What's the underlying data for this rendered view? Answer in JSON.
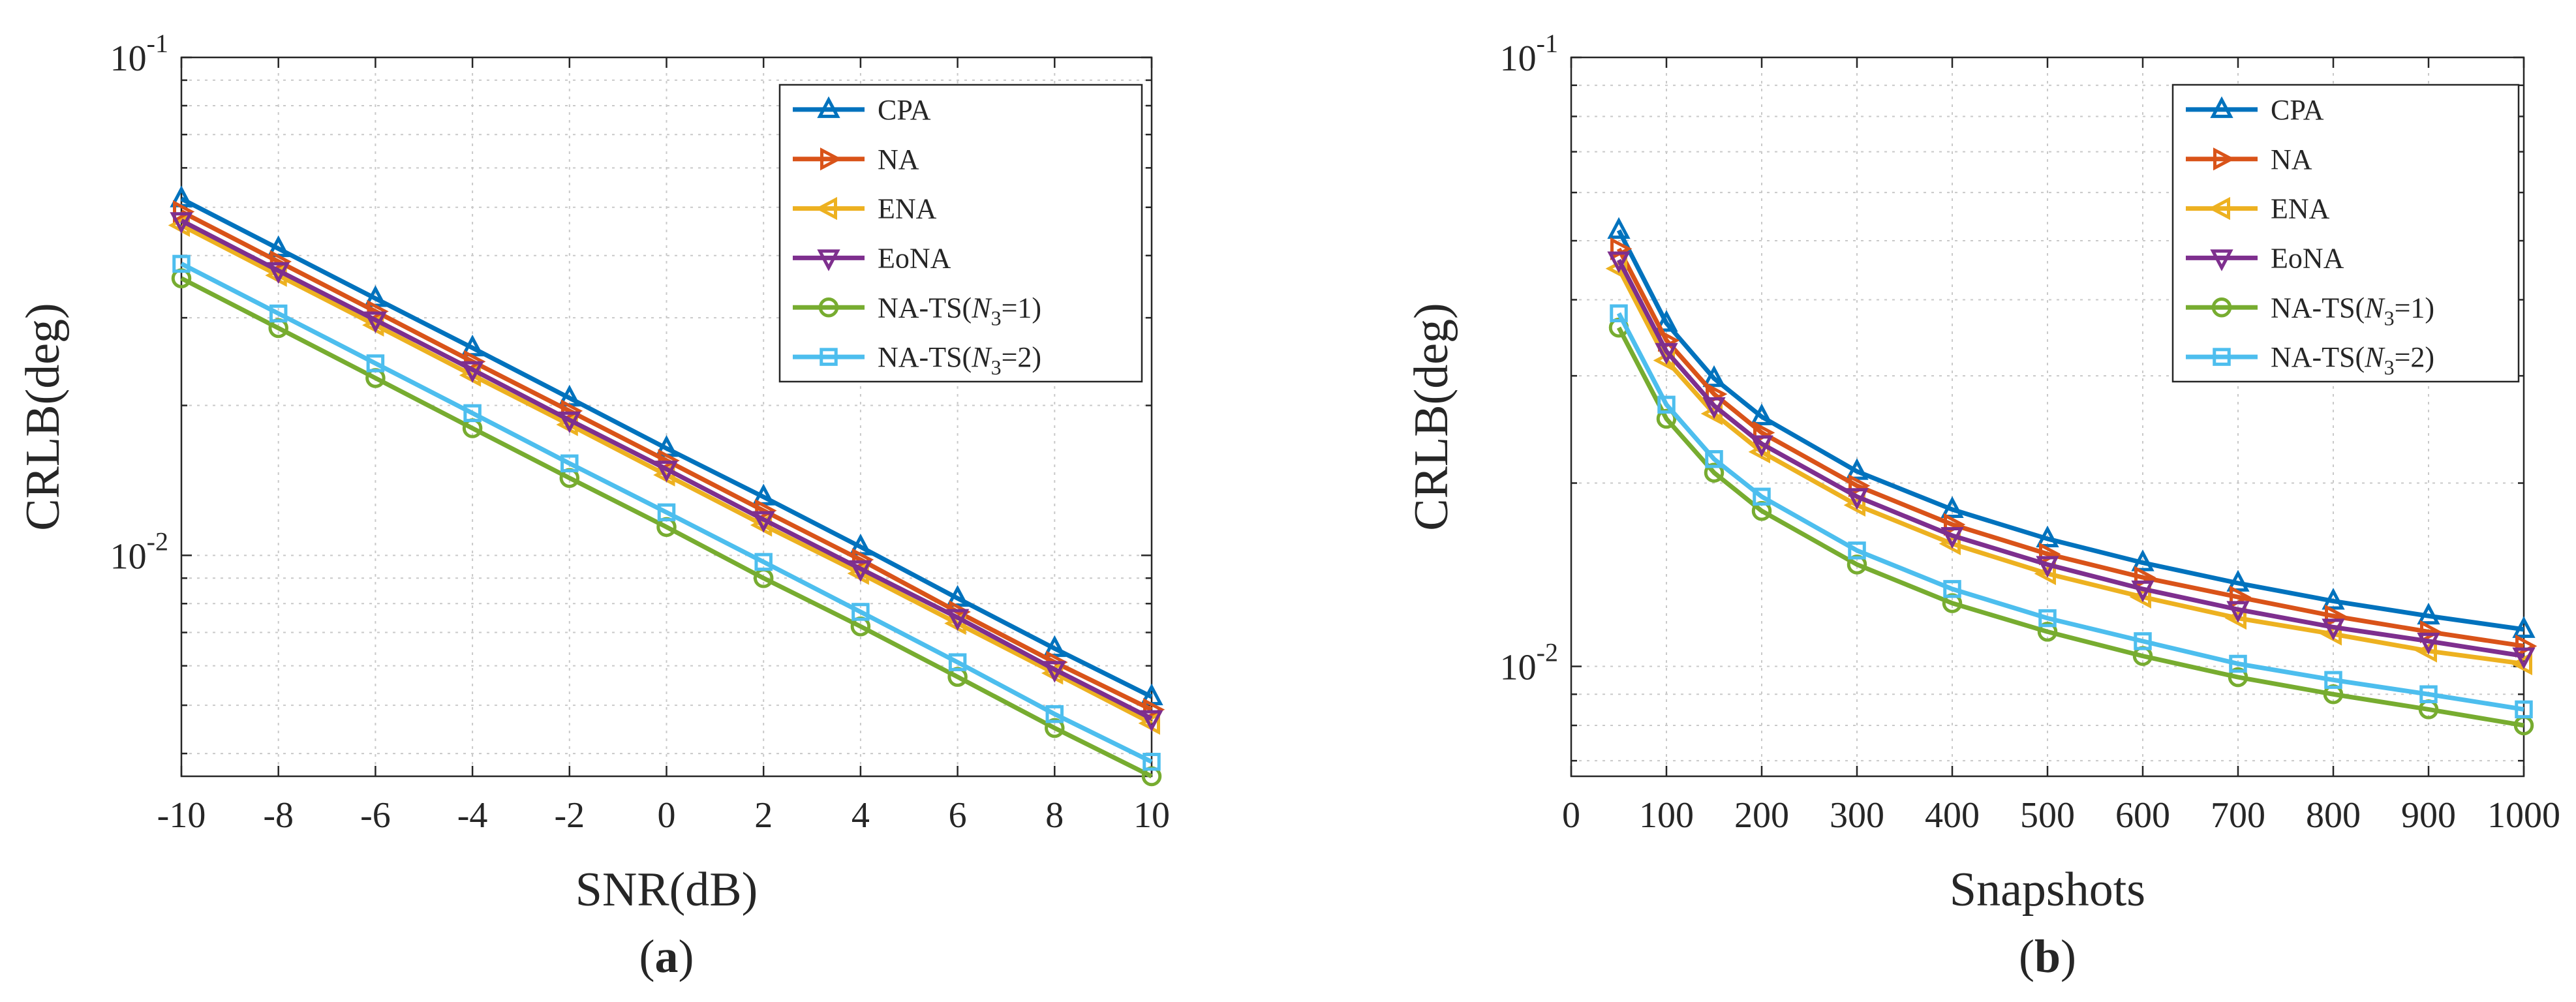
{
  "colors": {
    "CPA": "#0072BD",
    "NA": "#D95319",
    "ENA": "#EDB120",
    "EoNA": "#7E2F8E",
    "NA-TS(N3=1)": "#77AC30",
    "NA-TS(N3=2)": "#4DBEEE"
  },
  "chart_data": [
    {
      "type": "line",
      "caption": "(a)",
      "caption_letter": "a",
      "xlabel": "SNR(dB)",
      "ylabel": "CRLB(deg)",
      "yscale": "log",
      "xlim": [
        -10,
        10
      ],
      "ylim": [
        0.0036,
        0.1
      ],
      "grid": true,
      "legend_position": "top-right",
      "x": [
        -10,
        -8,
        -6,
        -4,
        -2,
        0,
        2,
        4,
        6,
        8,
        10
      ],
      "xticks": [
        -10,
        -8,
        -6,
        -4,
        -2,
        0,
        2,
        4,
        6,
        8,
        10
      ],
      "yticks": [
        {
          "value": 0.1,
          "base": "10",
          "exp": "-1"
        },
        {
          "value": 0.01,
          "base": "10",
          "exp": "-2"
        }
      ],
      "series": [
        {
          "name": "CPA",
          "marker": "triangle-up",
          "values": [
            0.052,
            0.0413,
            0.0328,
            0.0261,
            0.0207,
            0.0164,
            0.0131,
            0.0104,
            0.0082,
            0.0065,
            0.0052
          ]
        },
        {
          "name": "NA",
          "marker": "triangle-right",
          "values": [
            0.049,
            0.0389,
            0.0309,
            0.0245,
            0.0195,
            0.0155,
            0.0123,
            0.0098,
            0.0077,
            0.0061,
            0.0049
          ]
        },
        {
          "name": "ENA",
          "marker": "triangle-left",
          "values": [
            0.046,
            0.0365,
            0.029,
            0.023,
            0.0183,
            0.0145,
            0.0115,
            0.0092,
            0.0073,
            0.0058,
            0.0046
          ]
        },
        {
          "name": "EoNA",
          "marker": "triangle-down",
          "values": [
            0.047,
            0.0373,
            0.0297,
            0.0236,
            0.0187,
            0.0149,
            0.0118,
            0.0094,
            0.0075,
            0.0059,
            0.0047
          ]
        },
        {
          "name": "NA-TS(N3=1)",
          "label_pre": "NA-TS(",
          "label_var": "N",
          "label_sub": "3",
          "label_post": "=1)",
          "marker": "circle",
          "values": [
            0.036,
            0.0286,
            0.0227,
            0.018,
            0.0143,
            0.0114,
            0.009,
            0.0072,
            0.0057,
            0.0045,
            0.0036
          ]
        },
        {
          "name": "NA-TS(N3=2)",
          "label_pre": "NA-TS(",
          "label_var": "N",
          "label_sub": "3",
          "label_post": "=2)",
          "marker": "square",
          "values": [
            0.0385,
            0.0306,
            0.0243,
            0.0193,
            0.0153,
            0.0122,
            0.0097,
            0.0077,
            0.0061,
            0.0048,
            0.00385
          ]
        }
      ]
    },
    {
      "type": "line",
      "caption": "(b)",
      "caption_letter": "b",
      "xlabel": "Snapshots",
      "ylabel": "CRLB(deg)",
      "yscale": "log",
      "xlim": [
        0,
        1000
      ],
      "ylim": [
        0.0066,
        0.1
      ],
      "grid": true,
      "legend_position": "top-right",
      "x": [
        50,
        100,
        150,
        200,
        300,
        400,
        500,
        600,
        700,
        800,
        900,
        1000
      ],
      "xticks": [
        0,
        100,
        200,
        300,
        400,
        500,
        600,
        700,
        800,
        900,
        1000
      ],
      "yticks": [
        {
          "value": 0.1,
          "base": "10",
          "exp": "-1"
        },
        {
          "value": 0.01,
          "base": "10",
          "exp": "-2"
        }
      ],
      "series": [
        {
          "name": "CPA",
          "marker": "triangle-up",
          "values": [
            0.052,
            0.0366,
            0.0297,
            0.0257,
            0.0209,
            0.0181,
            0.0162,
            0.0148,
            0.0137,
            0.0128,
            0.0121,
            0.0115
          ]
        },
        {
          "name": "NA",
          "marker": "triangle-right",
          "values": [
            0.0485,
            0.0343,
            0.028,
            0.0242,
            0.0198,
            0.0171,
            0.0153,
            0.014,
            0.013,
            0.0121,
            0.0114,
            0.0108
          ]
        },
        {
          "name": "ENA",
          "marker": "triangle-left",
          "values": [
            0.045,
            0.0318,
            0.026,
            0.0225,
            0.0184,
            0.0159,
            0.0142,
            0.013,
            0.012,
            0.0113,
            0.0106,
            0.0101
          ]
        },
        {
          "name": "EoNA",
          "marker": "triangle-down",
          "values": [
            0.0465,
            0.0329,
            0.0268,
            0.0232,
            0.019,
            0.0164,
            0.0147,
            0.0134,
            0.0124,
            0.0116,
            0.011,
            0.0104
          ]
        },
        {
          "name": "NA-TS(N3=1)",
          "label_pre": "NA-TS(",
          "label_var": "N",
          "label_sub": "3",
          "label_post": "=1)",
          "marker": "circle",
          "values": [
            0.036,
            0.0255,
            0.0208,
            0.018,
            0.0147,
            0.0127,
            0.0114,
            0.0104,
            0.0096,
            0.009,
            0.0085,
            0.008
          ]
        },
        {
          "name": "NA-TS(N3=2)",
          "label_pre": "NA-TS(",
          "label_var": "N",
          "label_sub": "3",
          "label_post": "=2)",
          "marker": "square",
          "values": [
            0.038,
            0.0269,
            0.0219,
            0.019,
            0.0155,
            0.0134,
            0.012,
            0.011,
            0.0101,
            0.0095,
            0.009,
            0.0085
          ]
        }
      ]
    }
  ]
}
